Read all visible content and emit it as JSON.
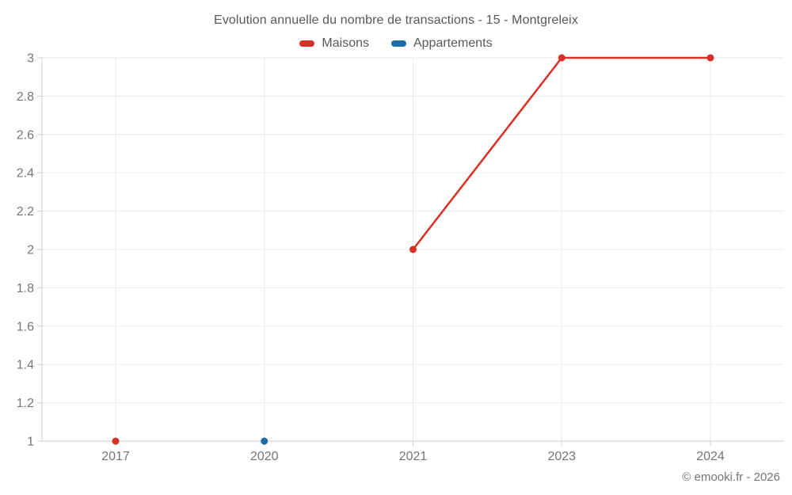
{
  "chart_data": {
    "type": "line",
    "title": "Evolution annuelle du nombre de transactions - 15 - Montgreleix",
    "categories": [
      "2017",
      "2020",
      "2021",
      "2023",
      "2024"
    ],
    "series": [
      {
        "name": "Maisons",
        "color": "#d93025",
        "values": [
          1,
          null,
          2,
          3,
          3
        ]
      },
      {
        "name": "Appartements",
        "color": "#1a6ea8",
        "values": [
          null,
          1,
          null,
          null,
          null
        ]
      }
    ],
    "ylim": [
      1,
      3
    ],
    "y_ticks": [
      "1",
      "1.2",
      "1.4",
      "1.6",
      "1.8",
      "2",
      "2.2",
      "2.4",
      "2.6",
      "2.8",
      "3"
    ],
    "grid": true,
    "legend_position": "top",
    "line_gaps": "missing years (2018, 2019, 2022) break the red line; 2017 and 2020 are isolated points"
  },
  "colors": {
    "grid": "#e9e9e9",
    "axis": "#cccccc",
    "tick_label": "#757575",
    "title_text": "#58585a"
  },
  "footer": {
    "copyright": "© emooki.fr - 2026"
  }
}
